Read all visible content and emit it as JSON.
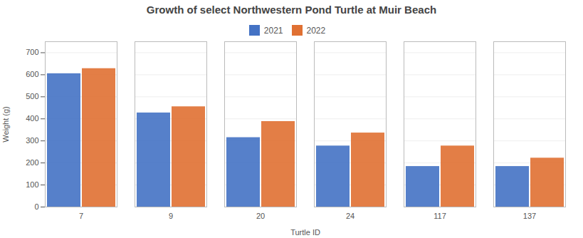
{
  "chart_data": {
    "type": "bar",
    "title": "Growth of select Northwestern Pond Turtle at Muir Beach",
    "xlabel": "Turtle ID",
    "ylabel": "Weight (g)",
    "categories": [
      "7",
      "9",
      "20",
      "24",
      "117",
      "137"
    ],
    "series": [
      {
        "name": "2021",
        "color": "#4472C4",
        "values": [
          605,
          427,
          315,
          277,
          184,
          184
        ]
      },
      {
        "name": "2022",
        "color": "#E07032",
        "values": [
          628,
          455,
          388,
          336,
          277,
          222
        ]
      }
    ],
    "ylim": [
      0,
      750
    ],
    "yticks": [
      0,
      100,
      200,
      300,
      400,
      500,
      600,
      700
    ],
    "grid": true,
    "legend": "top"
  }
}
